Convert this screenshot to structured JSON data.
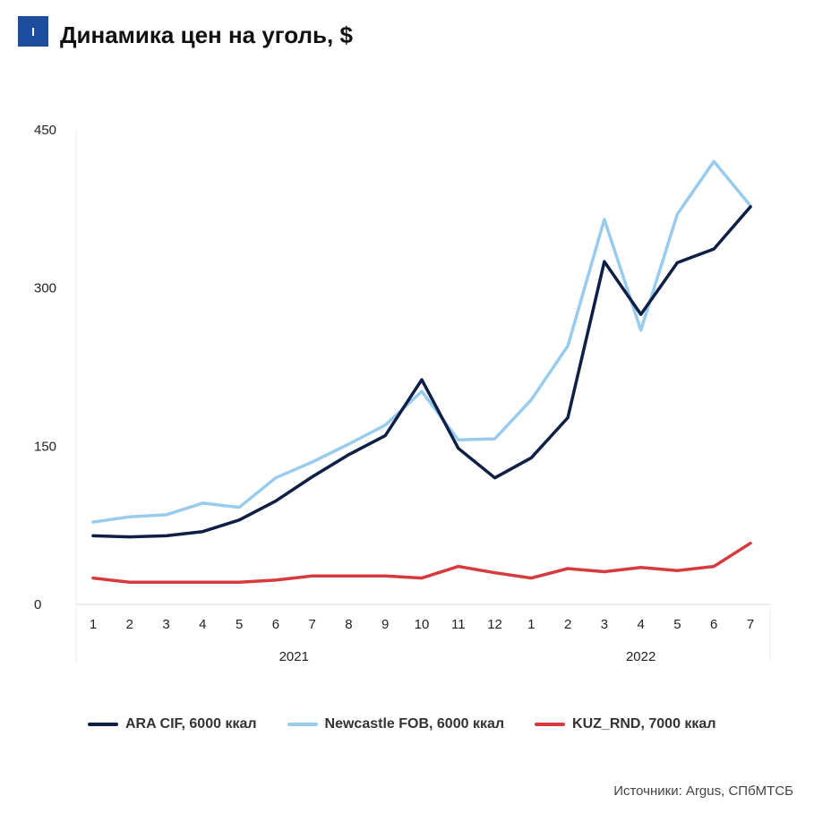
{
  "header": {
    "badge": "I",
    "title": "Динамика цен на уголь, $"
  },
  "colors": {
    "badge": "#1d4e9e",
    "ara": "#0d1f45",
    "newcastle": "#99cbec",
    "kuz": "#d63a3e"
  },
  "chart_data": {
    "type": "line",
    "title": "Динамика цен на уголь, $",
    "x": [
      "1",
      "2",
      "3",
      "4",
      "5",
      "6",
      "7",
      "8",
      "9",
      "10",
      "11",
      "12",
      "1",
      "2",
      "3",
      "4",
      "5",
      "6",
      "7"
    ],
    "year_groups": [
      {
        "label": "2021",
        "start": 0,
        "end": 11
      },
      {
        "label": "2022",
        "start": 12,
        "end": 18
      }
    ],
    "yticks": [
      "0",
      "150",
      "300",
      "450"
    ],
    "ylim": [
      0,
      450
    ],
    "grid": false,
    "legend_position": "bottom",
    "series": [
      {
        "name": "ARA CIF, 6000 ккал",
        "color_key": "ara",
        "values": [
          65,
          64,
          65,
          69,
          80,
          98,
          121,
          142,
          160,
          213,
          148,
          120,
          139,
          177,
          325,
          275,
          324,
          337,
          377
        ]
      },
      {
        "name": "Newcastle FOB, 6000 ккал",
        "color_key": "newcastle",
        "values": [
          78,
          83,
          85,
          96,
          92,
          120,
          135,
          152,
          170,
          202,
          156,
          157,
          194,
          245,
          365,
          260,
          370,
          420,
          378
        ]
      },
      {
        "name": "KUZ_RND, 7000 ккал",
        "color_key": "kuz",
        "values": [
          25,
          21,
          21,
          21,
          21,
          23,
          27,
          27,
          27,
          25,
          36,
          30,
          25,
          34,
          31,
          35,
          32,
          36,
          58
        ]
      }
    ]
  },
  "footer": {
    "source": "Источники: Argus, СПбМТСБ"
  }
}
